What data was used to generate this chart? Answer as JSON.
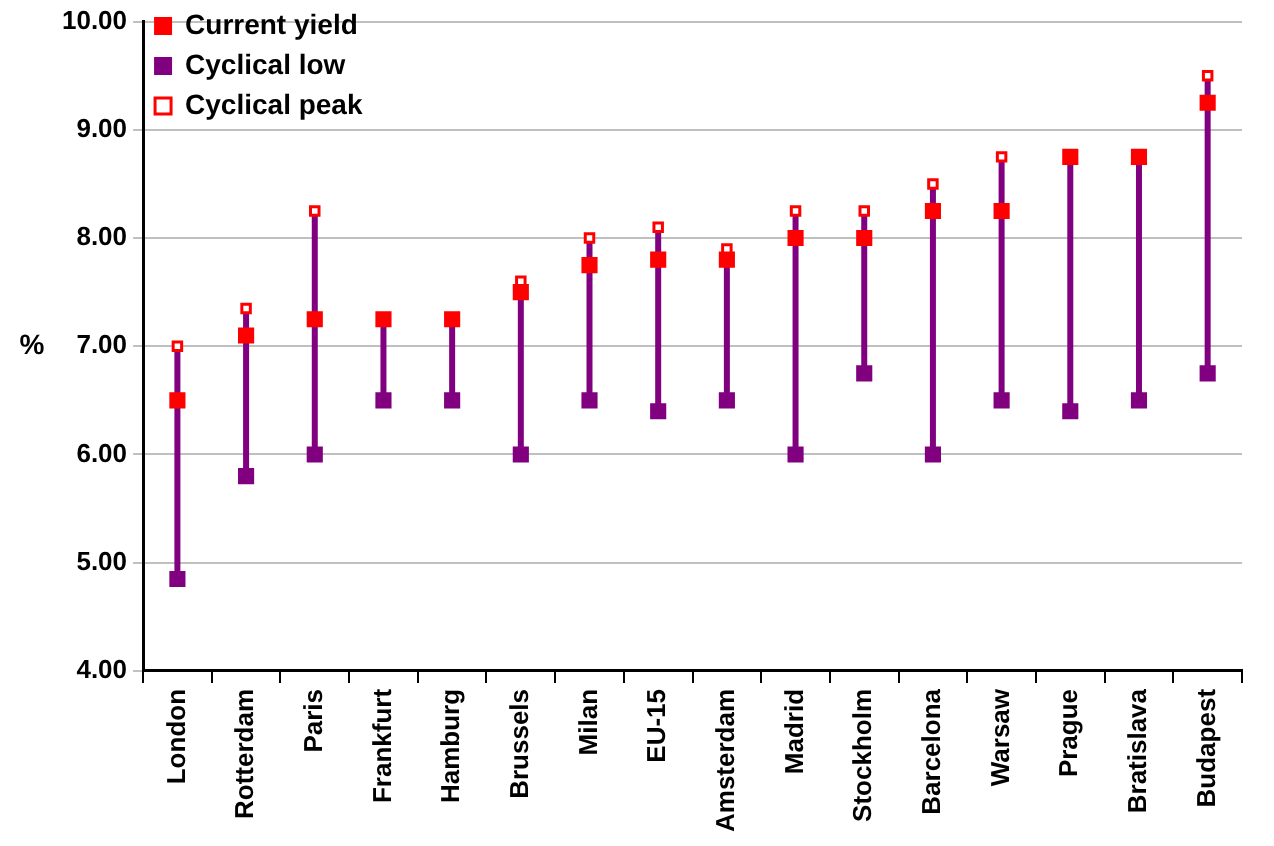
{
  "chart_data": {
    "type": "scatter",
    "ylabel": "%",
    "categories": [
      "London",
      "Rotterdam",
      "Paris",
      "Frankfurt",
      "Hamburg",
      "Brussels",
      "Milan",
      "EU-15",
      "Amsterdam",
      "Madrid",
      "Stockholm",
      "Barcelona",
      "Warsaw",
      "Prague",
      "Bratislava",
      "Budapest"
    ],
    "series": [
      {
        "name": "Current yield",
        "color": "#ff0000",
        "values": [
          6.5,
          7.1,
          7.25,
          7.25,
          7.25,
          7.5,
          7.75,
          7.8,
          7.8,
          8.0,
          8.0,
          8.25,
          8.25,
          8.75,
          8.75,
          9.25
        ]
      },
      {
        "name": "Cyclical low",
        "color": "#800080",
        "values": [
          4.85,
          5.8,
          6.0,
          6.5,
          6.5,
          6.0,
          6.5,
          6.4,
          6.5,
          6.0,
          6.75,
          6.0,
          6.5,
          6.4,
          6.5,
          6.75
        ]
      },
      {
        "name": "Cyclical peak",
        "color": "#ff0000",
        "values": [
          7.0,
          7.35,
          8.25,
          null,
          null,
          7.6,
          8.0,
          8.1,
          7.9,
          8.25,
          8.25,
          8.5,
          8.75,
          null,
          null,
          9.5
        ]
      }
    ],
    "ylim": [
      4,
      10
    ],
    "yticks": [
      {
        "value": 4,
        "label": "4.00"
      },
      {
        "value": 5,
        "label": "5.00"
      },
      {
        "value": 6,
        "label": "6.00"
      },
      {
        "value": 7,
        "label": "7.00"
      },
      {
        "value": 8,
        "label": "8.00"
      },
      {
        "value": 9,
        "label": "9.00"
      },
      {
        "value": 10,
        "label": "10.00"
      }
    ],
    "grid": "y",
    "legend": "top left",
    "marker": "square"
  }
}
